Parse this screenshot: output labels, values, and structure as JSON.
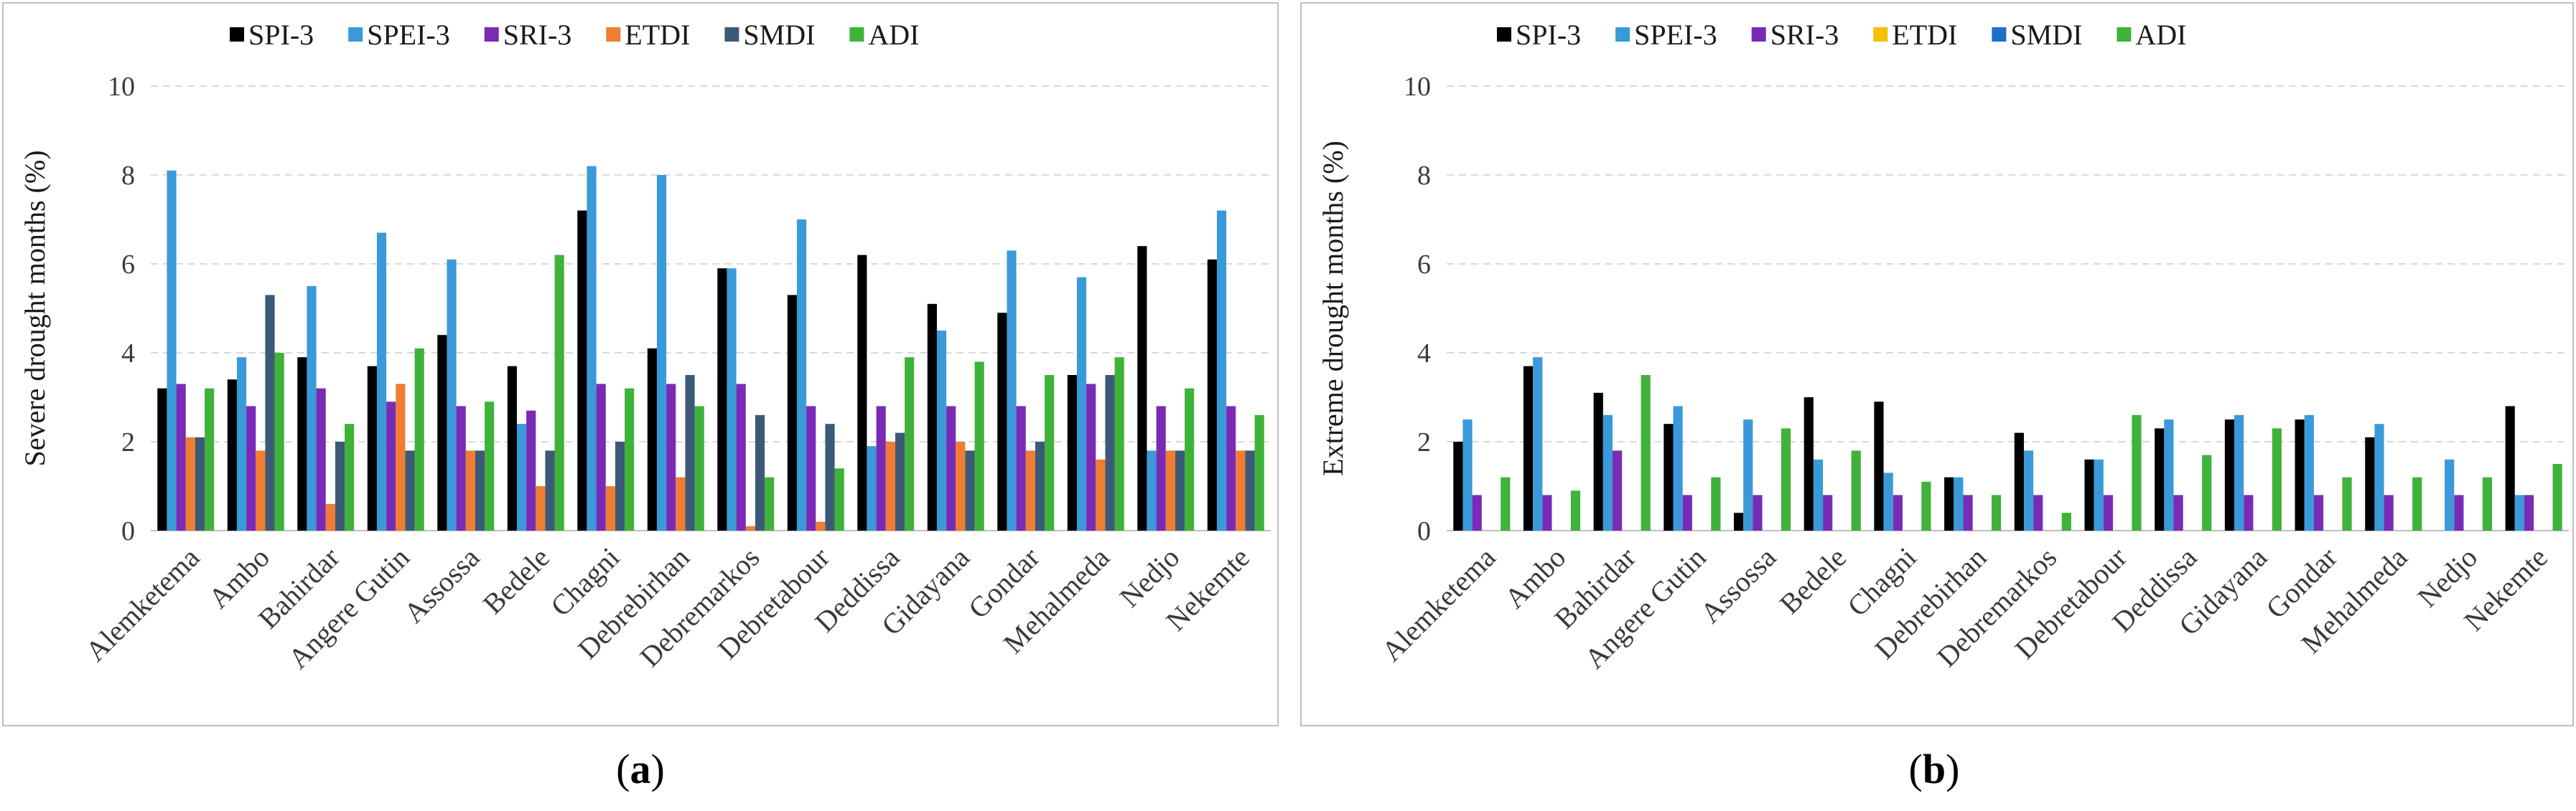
{
  "chart_data": [
    {
      "type": "bar",
      "caption": {
        "open": "(",
        "letter": "a",
        "close": ")"
      },
      "ylabel": "Severe drought months (%)",
      "xlabel": "",
      "ylim": [
        0,
        10
      ],
      "yticks": [
        0,
        2,
        4,
        6,
        8,
        10
      ],
      "grid": true,
      "legend": "top",
      "categories": [
        "Alemketema",
        "Ambo",
        "Bahirdar",
        "Angere Gutin",
        "Assossa",
        "Bedele",
        "Chagni",
        "Debrebirhan",
        "Debremarkos",
        "Debretabour",
        "Deddissa",
        "Gidayana",
        "Gondar",
        "Mehalmeda",
        "Nedjo",
        "Nekemte"
      ],
      "series": [
        {
          "name": "SPI-3",
          "color": "#000000",
          "values": [
            3.2,
            3.4,
            3.9,
            3.7,
            4.4,
            3.7,
            7.2,
            4.1,
            5.9,
            5.3,
            6.2,
            5.1,
            4.9,
            3.5,
            6.4,
            6.1
          ]
        },
        {
          "name": "SPEI-3",
          "color": "#3a9ad9",
          "values": [
            8.1,
            3.9,
            5.5,
            6.7,
            6.1,
            2.4,
            8.2,
            8.0,
            5.9,
            7.0,
            1.9,
            4.5,
            6.3,
            5.7,
            1.8,
            7.2
          ]
        },
        {
          "name": "SRI-3",
          "color": "#7a2bb5",
          "values": [
            3.3,
            2.8,
            3.2,
            2.9,
            2.8,
            2.7,
            3.3,
            3.3,
            3.3,
            2.8,
            2.8,
            2.8,
            2.8,
            3.3,
            2.8,
            2.8
          ]
        },
        {
          "name": "ETDI",
          "color": "#f07d32",
          "values": [
            2.1,
            1.8,
            0.6,
            3.3,
            1.8,
            1.0,
            1.0,
            1.2,
            0.1,
            0.2,
            2.0,
            2.0,
            1.8,
            1.6,
            1.8,
            1.8
          ]
        },
        {
          "name": "SMDI",
          "color": "#3c5a78",
          "values": [
            2.1,
            5.3,
            2.0,
            1.8,
            1.8,
            1.8,
            2.0,
            3.5,
            2.6,
            2.4,
            2.2,
            1.8,
            2.0,
            3.5,
            1.8,
            1.8
          ]
        },
        {
          "name": "ADI",
          "color": "#3fb23a",
          "values": [
            3.2,
            4.0,
            2.4,
            4.1,
            2.9,
            6.2,
            3.2,
            2.8,
            1.2,
            1.4,
            3.9,
            3.8,
            3.5,
            3.9,
            3.2,
            2.6
          ]
        }
      ]
    },
    {
      "type": "bar",
      "caption": {
        "open": "(",
        "letter": "b",
        "close": ")"
      },
      "ylabel": "Extreme drought months (%)",
      "xlabel": "",
      "ylim": [
        0,
        10
      ],
      "yticks": [
        0,
        2,
        4,
        6,
        8,
        10
      ],
      "grid": true,
      "legend": "top",
      "categories": [
        "Alemketema",
        "Ambo",
        "Bahirdar",
        "Angere Gutin",
        "Assossa",
        "Bedele",
        "Chagni",
        "Debrebirhan",
        "Debremarkos",
        "Debretabour",
        "Deddissa",
        "Gidayana",
        "Gondar",
        "Mehalmeda",
        "Nedjo",
        "Nekemte"
      ],
      "series": [
        {
          "name": "SPI-3",
          "color": "#000000",
          "values": [
            2.0,
            3.7,
            3.1,
            2.4,
            0.4,
            3.0,
            2.9,
            1.2,
            2.2,
            1.6,
            2.3,
            2.5,
            2.5,
            2.1,
            0,
            2.8
          ]
        },
        {
          "name": "SPEI-3",
          "color": "#3a9ad9",
          "values": [
            2.5,
            3.9,
            2.6,
            2.8,
            2.5,
            1.6,
            1.3,
            1.2,
            1.8,
            1.6,
            2.5,
            2.6,
            2.6,
            2.4,
            1.6,
            0.8
          ]
        },
        {
          "name": "SRI-3",
          "color": "#7a2bb5",
          "values": [
            0.8,
            0.8,
            1.8,
            0.8,
            0.8,
            0.8,
            0.8,
            0.8,
            0.8,
            0.8,
            0.8,
            0.8,
            0.8,
            0.8,
            0.8,
            0.8
          ]
        },
        {
          "name": "ETDI",
          "color": "#f5c000",
          "values": [
            0,
            0,
            0,
            0,
            0,
            0,
            0,
            0,
            0,
            0,
            0,
            0,
            0,
            0,
            0,
            0
          ]
        },
        {
          "name": "SMDI",
          "color": "#1f6fc5",
          "values": [
            0,
            0,
            0,
            0,
            0,
            0,
            0,
            0,
            0,
            0,
            0,
            0,
            0,
            0,
            0,
            0
          ]
        },
        {
          "name": "ADI",
          "color": "#3fb23a",
          "values": [
            1.2,
            0.9,
            3.5,
            1.2,
            2.3,
            1.8,
            1.1,
            0.8,
            0.4,
            2.6,
            1.7,
            2.3,
            1.2,
            1.2,
            1.2,
            1.5
          ]
        }
      ]
    }
  ]
}
